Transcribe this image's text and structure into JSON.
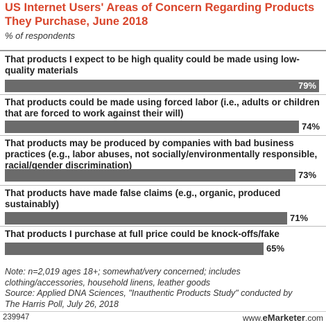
{
  "title": "US Internet Users' Areas of Concern Regarding Products They Purchase, June 2018",
  "subtitle": "% of respondents",
  "chart_data": {
    "type": "bar",
    "orientation": "horizontal",
    "categories": [
      "That products I expect to be high quality could be made using low-quality materials",
      "That products could be made using forced labor (i.e., adults or children that are forced to work against their will)",
      "That products may be produced by companies with bad business practices (e.g., labor abuses, not socially/environmentally responsible, racial/gender discrimination)",
      "That products have made false claims (e.g., organic, produced sustainably)",
      "That products I purchase at full price could be knock-offs/fake"
    ],
    "values": [
      79,
      74,
      73,
      71,
      65
    ],
    "value_labels": [
      "79%",
      "74%",
      "73%",
      "71%",
      "65%"
    ],
    "xlim": [
      0,
      79
    ],
    "bar_color": "#6b6b6b"
  },
  "notes": [
    "Note: n=2,019 ages 18+; somewhat/very concerned; includes",
    "clothing/accessories, household linens, leather goods",
    "Source: Applied DNA Sciences, \"Inauthentic Products Study\" conducted by",
    "The Harris Poll, July 26, 2018"
  ],
  "footer": {
    "chart_id": "239947",
    "brand_prefix": "www.",
    "brand_name": "eMarketer",
    "brand_suffix": ".com"
  }
}
